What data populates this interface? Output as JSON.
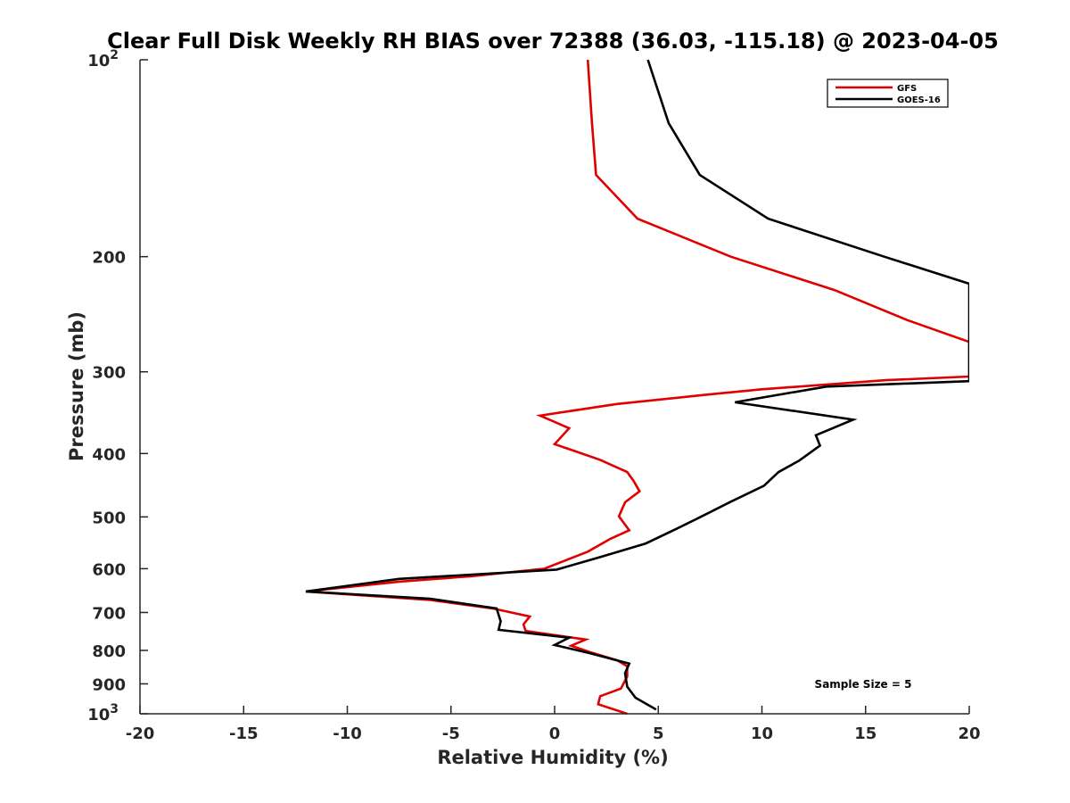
{
  "chart_data": {
    "type": "line",
    "title": "Clear Full Disk Weekly RH BIAS over 72388 (36.03, -115.18) @ 2023-04-05",
    "xlabel": "Relative Humidity (%)",
    "ylabel": "Pressure (mb)",
    "xlim": [
      -20,
      20
    ],
    "ylim": [
      100,
      1000
    ],
    "y_scale": "log",
    "y_reversed": true,
    "grid": false,
    "legend_position": "top-right",
    "x_ticks": [
      -20,
      -15,
      -10,
      -5,
      0,
      5,
      10,
      15,
      20
    ],
    "y_ticks": [
      {
        "value": 100,
        "label": "10",
        "sup": "2"
      },
      {
        "value": 200,
        "label": "200",
        "sup": ""
      },
      {
        "value": 300,
        "label": "300",
        "sup": ""
      },
      {
        "value": 400,
        "label": "400",
        "sup": ""
      },
      {
        "value": 500,
        "label": "500",
        "sup": ""
      },
      {
        "value": 600,
        "label": "600",
        "sup": ""
      },
      {
        "value": 700,
        "label": "700",
        "sup": ""
      },
      {
        "value": 800,
        "label": "800",
        "sup": ""
      },
      {
        "value": 900,
        "label": "900",
        "sup": ""
      },
      {
        "value": 1000,
        "label": "10",
        "sup": "3"
      }
    ],
    "series": [
      {
        "name": "GFS",
        "color": "#e00000",
        "points": [
          [
            1.6,
            100
          ],
          [
            1.8,
            125
          ],
          [
            2.0,
            150
          ],
          [
            4.0,
            175
          ],
          [
            8.5,
            200
          ],
          [
            13.5,
            225
          ],
          [
            17.0,
            250
          ],
          [
            20.0,
            270
          ],
          [
            20.0,
            305
          ],
          [
            16.0,
            309
          ],
          [
            13.0,
            314
          ],
          [
            10.0,
            319
          ],
          [
            7.4,
            325
          ],
          [
            3.0,
            336
          ],
          [
            -0.7,
            350
          ],
          [
            0.7,
            366
          ],
          [
            0.0,
            387
          ],
          [
            2.2,
            409
          ],
          [
            3.5,
            427
          ],
          [
            3.8,
            440
          ],
          [
            4.1,
            457
          ],
          [
            3.4,
            475
          ],
          [
            3.1,
            499
          ],
          [
            3.6,
            524
          ],
          [
            2.7,
            540
          ],
          [
            1.6,
            565
          ],
          [
            -0.5,
            600
          ],
          [
            -4.0,
            616
          ],
          [
            -7.5,
            628
          ],
          [
            -12.0,
            650
          ],
          [
            -6.0,
            670
          ],
          [
            -3.0,
            690
          ],
          [
            -1.2,
            710
          ],
          [
            -1.5,
            730
          ],
          [
            -1.4,
            747
          ],
          [
            1.5,
            770
          ],
          [
            0.8,
            787
          ],
          [
            1.7,
            805
          ],
          [
            3.0,
            828
          ],
          [
            3.5,
            846
          ],
          [
            3.5,
            877
          ],
          [
            3.2,
            915
          ],
          [
            2.2,
            940
          ],
          [
            2.1,
            967
          ],
          [
            3.5,
            1000
          ]
        ]
      },
      {
        "name": "GOES-16",
        "color": "#000000",
        "points": [
          [
            4.5,
            100
          ],
          [
            5.5,
            125
          ],
          [
            7.0,
            150
          ],
          [
            10.3,
            175
          ],
          [
            15.9,
            200
          ],
          [
            20.0,
            220
          ],
          [
            20.0,
            310
          ],
          [
            13.1,
            316
          ],
          [
            8.7,
            334
          ],
          [
            14.4,
            355
          ],
          [
            12.6,
            375
          ],
          [
            12.8,
            389
          ],
          [
            11.8,
            410
          ],
          [
            10.8,
            427
          ],
          [
            10.1,
            448
          ],
          [
            8.5,
            474
          ],
          [
            7.1,
            499
          ],
          [
            5.9,
            521
          ],
          [
            4.4,
            549
          ],
          [
            2.2,
            576
          ],
          [
            0.1,
            602
          ],
          [
            -7.5,
            622
          ],
          [
            -12.0,
            650
          ],
          [
            -6.0,
            667
          ],
          [
            -2.8,
            690
          ],
          [
            -2.6,
            722
          ],
          [
            -2.7,
            744
          ],
          [
            0.7,
            765
          ],
          [
            0.0,
            785
          ],
          [
            1.7,
            808
          ],
          [
            3.6,
            838
          ],
          [
            3.4,
            867
          ],
          [
            3.5,
            909
          ],
          [
            3.9,
            945
          ],
          [
            4.9,
            985
          ]
        ]
      }
    ],
    "annotation": "Sample Size = 5"
  }
}
